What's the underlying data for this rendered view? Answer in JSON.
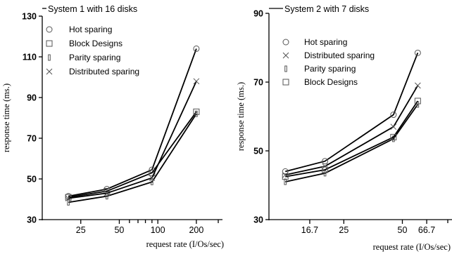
{
  "chart_data": [
    {
      "type": "line",
      "title": "System 1 with 16 disks",
      "xlabel": "request rate (I/Os/sec)",
      "ylabel": "response time (ms.)",
      "x_scale": "log",
      "ylim": [
        30,
        130
      ],
      "yticks": [
        30,
        50,
        70,
        90,
        110,
        130
      ],
      "xticks": [
        25,
        50,
        100,
        200
      ],
      "x": [
        20,
        40,
        90,
        200
      ],
      "legend_position": "top-left",
      "series": [
        {
          "name": "Hot sparing",
          "marker": "circle",
          "values": [
            41.5,
            45,
            54.5,
            114
          ]
        },
        {
          "name": "Block Designs",
          "marker": "square",
          "values": [
            41,
            44,
            53,
            83
          ]
        },
        {
          "name": "Parity sparing",
          "marker": "bar",
          "values": [
            38.5,
            41.5,
            48.5,
            82
          ]
        },
        {
          "name": "Distributed sparing",
          "marker": "x",
          "values": [
            40.5,
            43,
            50.5,
            98
          ]
        }
      ]
    },
    {
      "type": "line",
      "title": "System 2 with 7 disks",
      "xlabel": "request rate (I/Os/sec)",
      "ylabel": "response time (ms.)",
      "x_scale": "log",
      "ylim": [
        30,
        90
      ],
      "yticks": [
        30,
        50,
        70,
        90
      ],
      "xticks": [
        "16.7",
        "25",
        "50",
        "66.7"
      ],
      "x": [
        12.5,
        20,
        45,
        60
      ],
      "legend_position": "top-left",
      "series": [
        {
          "name": "Hot sparing",
          "marker": "circle",
          "values": [
            44,
            47,
            60.5,
            78.5
          ]
        },
        {
          "name": "Distributed sparing",
          "marker": "x",
          "values": [
            43,
            45.5,
            57,
            69
          ]
        },
        {
          "name": "Parity sparing",
          "marker": "bar",
          "values": [
            41,
            43.5,
            53.5,
            63.5
          ]
        },
        {
          "name": "Block Designs",
          "marker": "square",
          "values": [
            42.5,
            44.5,
            54,
            64.5
          ]
        }
      ]
    }
  ]
}
